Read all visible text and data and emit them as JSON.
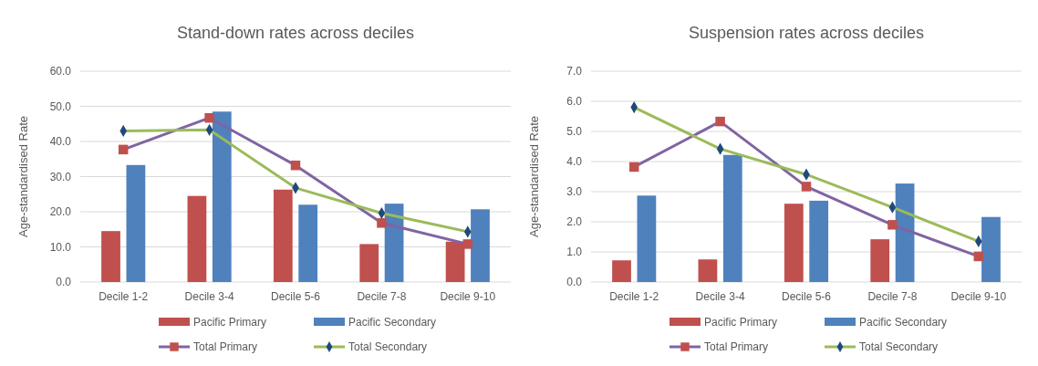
{
  "chart_data": [
    {
      "type": "bar",
      "title": "Stand-down rates across deciles",
      "ylabel": "Age-standardised Rate",
      "categories": [
        "Decile 1-2",
        "Decile 3-4",
        "Decile 5-6",
        "Decile 7-8",
        "Decile 9-10"
      ],
      "series": [
        {
          "name": "Pacific Primary",
          "color": "#c0504d",
          "values": [
            14.5,
            24.5,
            26.3,
            10.8,
            11.5
          ]
        },
        {
          "name": "Pacific Secondary",
          "color": "#4f81bd",
          "values": [
            33.3,
            48.5,
            22.0,
            22.3,
            20.7
          ]
        },
        {
          "name": "Total Primary",
          "type": "line",
          "color": "#8064a2",
          "marker": "square",
          "values": [
            37.7,
            46.7,
            33.2,
            16.8,
            10.8
          ]
        },
        {
          "name": "Total Secondary",
          "type": "line",
          "color": "#9bbb59",
          "marker": "diamond",
          "values": [
            43.0,
            43.3,
            26.8,
            19.6,
            14.3
          ]
        }
      ],
      "ylim": [
        0,
        60
      ],
      "yticks": [
        {
          "value": 0,
          "label": "0.0"
        },
        {
          "value": 10,
          "label": "10.0"
        },
        {
          "value": 20,
          "label": "20.0"
        },
        {
          "value": 30,
          "label": "30.0"
        },
        {
          "value": 40,
          "label": "40.0"
        },
        {
          "value": 50,
          "label": "50.0"
        },
        {
          "value": 60,
          "label": "60.0"
        }
      ],
      "grid": "y",
      "legend": "bottom"
    },
    {
      "type": "bar",
      "title": "Suspension rates across deciles",
      "ylabel": "Age-standardised Rate",
      "categories": [
        "Decile 1-2",
        "Decile 3-4",
        "Decile 5-6",
        "Decile 7-8",
        "Decile 9-10"
      ],
      "series": [
        {
          "name": "Pacific Primary",
          "color": "#c0504d",
          "values": [
            0.72,
            0.75,
            2.6,
            1.42,
            null
          ]
        },
        {
          "name": "Pacific Secondary",
          "color": "#4f81bd",
          "values": [
            2.87,
            4.22,
            2.7,
            3.27,
            2.16
          ]
        },
        {
          "name": "Total Primary",
          "type": "line",
          "color": "#8064a2",
          "marker": "square",
          "values": [
            3.82,
            5.33,
            3.17,
            1.9,
            0.85
          ]
        },
        {
          "name": "Total Secondary",
          "type": "line",
          "color": "#9bbb59",
          "marker": "diamond",
          "values": [
            5.8,
            4.42,
            3.57,
            2.48,
            1.35
          ]
        }
      ],
      "ylim": [
        0,
        7
      ],
      "yticks": [
        {
          "value": 0,
          "label": "0.0"
        },
        {
          "value": 1,
          "label": "1.0"
        },
        {
          "value": 2,
          "label": "2.0"
        },
        {
          "value": 3,
          "label": "3.0"
        },
        {
          "value": 4,
          "label": "4.0"
        },
        {
          "value": 5,
          "label": "5.0"
        },
        {
          "value": 6,
          "label": "6.0"
        },
        {
          "value": 7,
          "label": "7.0"
        }
      ],
      "grid": "y",
      "legend": "bottom"
    }
  ]
}
